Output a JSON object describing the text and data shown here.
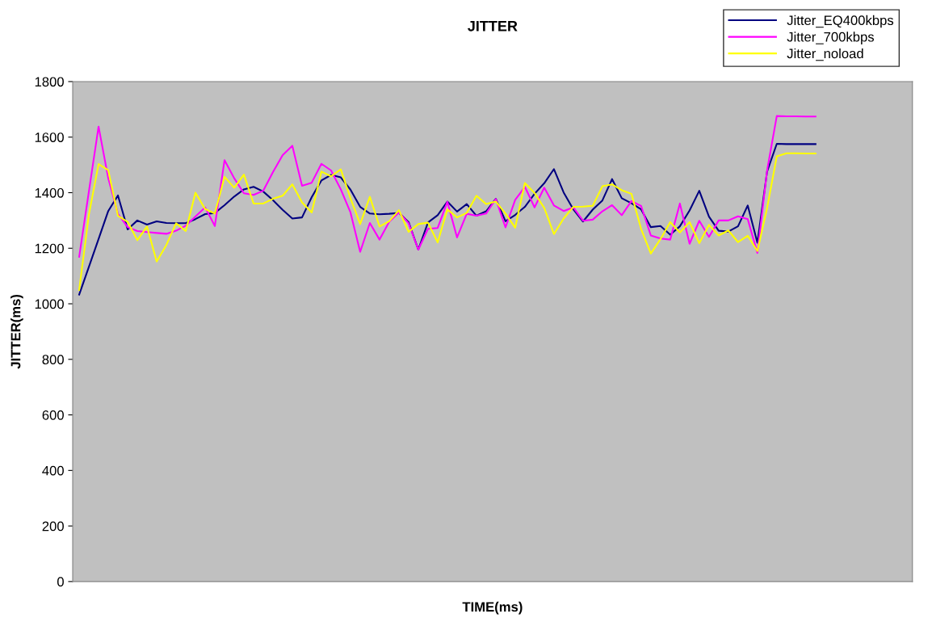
{
  "chart_data": {
    "type": "line",
    "title": "JITTER",
    "xlabel": "TIME(ms)",
    "ylabel": "JITTER(ms)",
    "categories": [
      null,
      null,
      null,
      null,
      null,
      null,
      null,
      null,
      null,
      null,
      null,
      null,
      null,
      null,
      null,
      null,
      null,
      null,
      null,
      null,
      null,
      null,
      null,
      null,
      null,
      null,
      null,
      null,
      null,
      null,
      null,
      null,
      null,
      null,
      null,
      null,
      null,
      null,
      null,
      null,
      null,
      null,
      null,
      null,
      null,
      null,
      null,
      null,
      null,
      null,
      null,
      null,
      null,
      null,
      null,
      null,
      null,
      null,
      null,
      null,
      null,
      null,
      null,
      null,
      null,
      null,
      null,
      null,
      null,
      null,
      null,
      null,
      null,
      null,
      null,
      null,
      null
    ],
    "series": [
      {
        "name": "Jitter_EQ400kbps",
        "color": "#000080",
        "values": [
          1033,
          1133,
          1233,
          1334,
          1390,
          1268,
          1300,
          1285,
          1297,
          1291,
          1290,
          1290,
          1305,
          1323,
          1327,
          1355,
          1386,
          1412,
          1421,
          1404,
          1373,
          1338,
          1307,
          1311,
          1384,
          1444,
          1464,
          1455,
          1411,
          1349,
          1325,
          1322,
          1324,
          1327,
          1294,
          1195,
          1293,
          1319,
          1368,
          1332,
          1359,
          1317,
          1333,
          1378,
          1297,
          1320,
          1349,
          1396,
          1434,
          1485,
          1401,
          1340,
          1296,
          1339,
          1372,
          1449,
          1380,
          1362,
          1340,
          1276,
          1280,
          1249,
          1279,
          1336,
          1407,
          1314,
          1263,
          1260,
          1279,
          1354,
          1220,
          1476,
          1576,
          1575,
          1575,
          1575,
          1575
        ]
      },
      {
        "name": "Jitter_700kbps",
        "color": "#ff00ff",
        "values": [
          1169,
          1404,
          1638,
          1452,
          1324,
          1276,
          1262,
          1258,
          1255,
          1252,
          1263,
          1281,
          1314,
          1347,
          1280,
          1517,
          1452,
          1398,
          1392,
          1407,
          1474,
          1535,
          1569,
          1425,
          1436,
          1504,
          1480,
          1412,
          1329,
          1187,
          1291,
          1231,
          1295,
          1329,
          1290,
          1195,
          1270,
          1273,
          1367,
          1239,
          1324,
          1317,
          1325,
          1377,
          1275,
          1374,
          1421,
          1347,
          1418,
          1354,
          1334,
          1347,
          1299,
          1303,
          1333,
          1355,
          1319,
          1370,
          1352,
          1246,
          1235,
          1231,
          1361,
          1216,
          1299,
          1241,
          1300,
          1300,
          1315,
          1305,
          1183,
          1480,
          1676,
          1675,
          1675,
          1674,
          1674
        ]
      },
      {
        "name": "Jitter_noload",
        "color": "#ffff00",
        "values": [
          1050,
          1321,
          1503,
          1481,
          1317,
          1295,
          1229,
          1278,
          1152,
          1212,
          1290,
          1262,
          1400,
          1341,
          1325,
          1457,
          1418,
          1465,
          1361,
          1361,
          1378,
          1389,
          1430,
          1365,
          1329,
          1476,
          1459,
          1484,
          1380,
          1287,
          1385,
          1278,
          1297,
          1337,
          1259,
          1287,
          1292,
          1221,
          1340,
          1311,
          1327,
          1389,
          1359,
          1368,
          1325,
          1274,
          1435,
          1399,
          1345,
          1251,
          1307,
          1349,
          1350,
          1353,
          1423,
          1430,
          1409,
          1396,
          1269,
          1181,
          1233,
          1294,
          1257,
          1294,
          1218,
          1284,
          1246,
          1264,
          1222,
          1245,
          1190,
          1345,
          1531,
          1542,
          1542,
          1541,
          1541
        ]
      }
    ],
    "ylim": [
      0,
      1800
    ],
    "yticks": [
      0,
      200,
      400,
      600,
      800,
      1000,
      1200,
      1400,
      1600,
      1800
    ],
    "grid": false,
    "legend": "top right",
    "tick_labels": "y",
    "marker": "none",
    "line_style": "solid"
  }
}
